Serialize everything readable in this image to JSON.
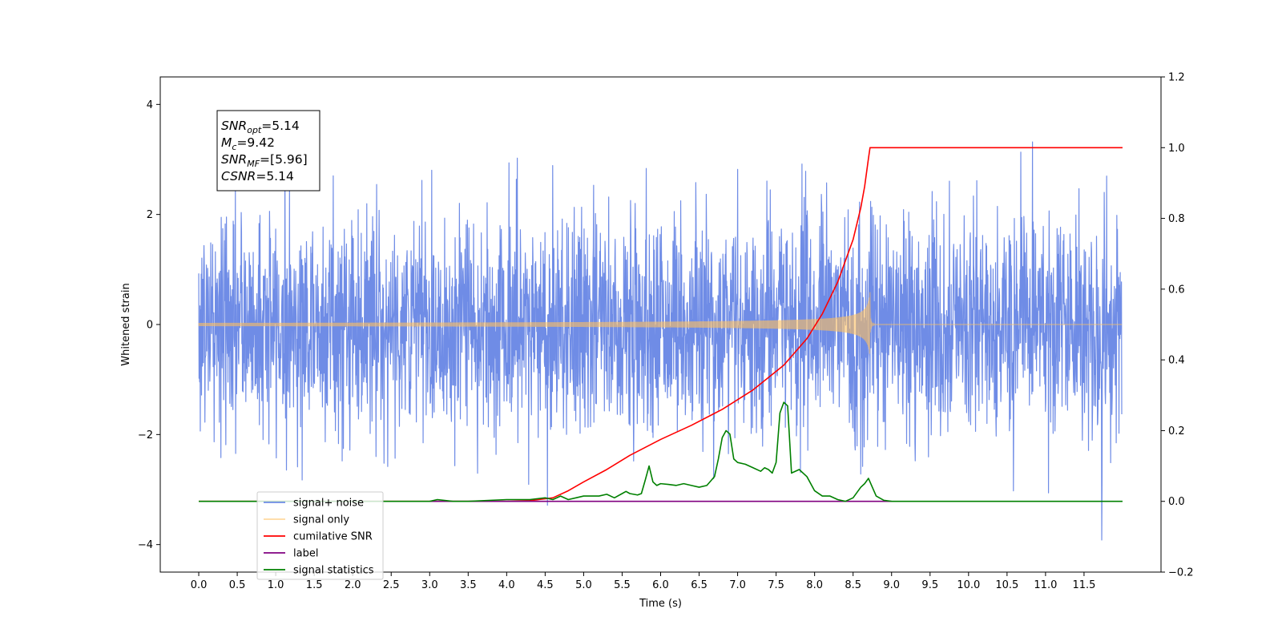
{
  "chart_data": {
    "type": "line",
    "xlabel": "Time (s)",
    "ylabel": "Whitened strain",
    "xlim": [
      -0.5,
      12.5
    ],
    "ylim": [
      -4.5,
      4.5
    ],
    "y2lim": [
      -0.2,
      1.2
    ],
    "x_ticks": [
      0.0,
      0.5,
      1.0,
      1.5,
      2.0,
      2.5,
      3.0,
      3.5,
      4.0,
      4.5,
      5.0,
      5.5,
      6.0,
      6.5,
      7.0,
      7.5,
      8.0,
      8.5,
      9.0,
      9.5,
      10.0,
      10.5,
      11.0,
      11.5
    ],
    "x_tick_labels": [
      "0.0",
      "0.5",
      "1.0",
      "1.5",
      "2.0",
      "2.5",
      "3.0",
      "3.5",
      "4.0",
      "4.5",
      "5.0",
      "5.5",
      "6.0",
      "6.5",
      "7.0",
      "7.5",
      "8.0",
      "8.5",
      "9.0",
      "9.5",
      "10.0",
      "10.5",
      "11.0",
      "11.5"
    ],
    "y_ticks": [
      -4,
      -2,
      0,
      2,
      4
    ],
    "y_tick_labels": [
      "−4",
      "−2",
      "0",
      "2",
      "4"
    ],
    "y2_ticks": [
      -0.2,
      0.0,
      0.2,
      0.4,
      0.6,
      0.8,
      1.0,
      1.2
    ],
    "y2_tick_labels": [
      "−0.2",
      "0.0",
      "0.2",
      "0.4",
      "0.6",
      "0.8",
      "1.0",
      "1.2"
    ],
    "grid": false,
    "legend_position": "lower-left",
    "annotation": [
      {
        "main": "SNR",
        "sub": "opt",
        "value": "=5.14"
      },
      {
        "main": "M",
        "sub": "c",
        "value": "=9.42"
      },
      {
        "main": "SNR",
        "sub": "MF",
        "value": "=[5.96]"
      },
      {
        "main": "CSNR",
        "sub": "",
        "value": "=5.14"
      }
    ],
    "series": [
      {
        "name": "signal+ noise",
        "axis": "left",
        "color": "#6f8ce6",
        "kind": "noise",
        "x_range": [
          0.0,
          11.99
        ],
        "std": 1.0,
        "approx_peak": 4.1
      },
      {
        "name": "signal only",
        "axis": "left",
        "color": "#ffbf5f",
        "kind": "chirp",
        "x_range": [
          0.0,
          11.99
        ],
        "merger_time": 8.72,
        "peak_amplitude": 0.6
      },
      {
        "name": "cumilative SNR",
        "axis": "right",
        "color": "#ff0000",
        "x": [
          0.0,
          4.0,
          4.3,
          4.6,
          4.8,
          5.0,
          5.3,
          5.6,
          6.0,
          6.4,
          6.8,
          7.2,
          7.6,
          7.9,
          8.1,
          8.3,
          8.5,
          8.6,
          8.65,
          8.7,
          8.72,
          9.0,
          10.0,
          11.0,
          12.0
        ],
        "values": [
          0.0,
          0.0,
          0.002,
          0.01,
          0.03,
          0.055,
          0.09,
          0.13,
          0.175,
          0.215,
          0.26,
          0.315,
          0.385,
          0.46,
          0.53,
          0.62,
          0.74,
          0.83,
          0.89,
          0.97,
          1.0,
          1.0,
          1.0,
          1.0,
          1.0
        ]
      },
      {
        "name": "label",
        "axis": "right",
        "color": "#800080",
        "x": [
          3.0,
          9.0
        ],
        "values": [
          0.0,
          0.0
        ]
      },
      {
        "name": "signal statistics",
        "axis": "right",
        "color": "#008000",
        "x": [
          0.0,
          3.0,
          3.1,
          3.3,
          3.5,
          4.0,
          4.3,
          4.5,
          4.6,
          4.7,
          4.8,
          4.9,
          5.0,
          5.1,
          5.2,
          5.3,
          5.4,
          5.5,
          5.55,
          5.6,
          5.7,
          5.75,
          5.8,
          5.85,
          5.9,
          5.95,
          6.0,
          6.1,
          6.2,
          6.3,
          6.4,
          6.5,
          6.6,
          6.7,
          6.75,
          6.8,
          6.85,
          6.9,
          6.95,
          7.0,
          7.1,
          7.2,
          7.3,
          7.35,
          7.4,
          7.45,
          7.5,
          7.55,
          7.6,
          7.65,
          7.7,
          7.8,
          7.9,
          8.0,
          8.1,
          8.2,
          8.3,
          8.4,
          8.5,
          8.6,
          8.65,
          8.7,
          8.75,
          8.8,
          8.9,
          9.0,
          9.5,
          12.0
        ],
        "values": [
          0.0,
          0.0,
          0.005,
          0.0,
          0.0,
          0.005,
          0.005,
          0.01,
          0.005,
          0.015,
          0.005,
          0.01,
          0.015,
          0.015,
          0.015,
          0.02,
          0.01,
          0.022,
          0.028,
          0.022,
          0.018,
          0.022,
          0.06,
          0.1,
          0.055,
          0.045,
          0.05,
          0.048,
          0.045,
          0.05,
          0.045,
          0.04,
          0.045,
          0.07,
          0.12,
          0.18,
          0.2,
          0.19,
          0.12,
          0.11,
          0.105,
          0.095,
          0.085,
          0.095,
          0.09,
          0.08,
          0.11,
          0.25,
          0.28,
          0.27,
          0.08,
          0.09,
          0.07,
          0.03,
          0.015,
          0.015,
          0.005,
          0.0,
          0.01,
          0.04,
          0.05,
          0.065,
          0.04,
          0.015,
          0.003,
          0.0,
          0.0,
          0.0
        ]
      }
    ]
  }
}
